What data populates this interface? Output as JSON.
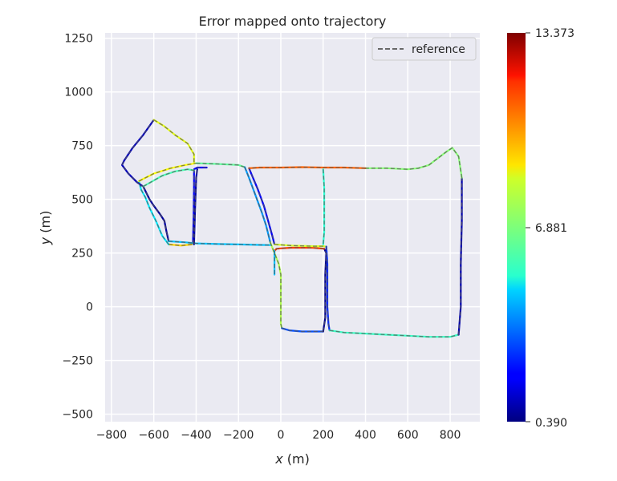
{
  "chart_data": {
    "type": "line",
    "title": "Error mapped onto trajectory",
    "xlabel_var": "x",
    "xlabel_unit": " (m)",
    "ylabel_var": "y",
    "ylabel_unit": " (m)",
    "xlim": [
      -830,
      940
    ],
    "ylim": [
      -535,
      1275
    ],
    "xticks": [
      -800,
      -600,
      -400,
      -200,
      0,
      200,
      400,
      600,
      800
    ],
    "xtick_labels": [
      "−800",
      "−600",
      "−400",
      "−200",
      "0",
      "200",
      "400",
      "600",
      "800"
    ],
    "yticks": [
      -500,
      -250,
      0,
      250,
      500,
      750,
      1000,
      1250
    ],
    "ytick_labels": [
      "−500",
      "−250",
      "0",
      "250",
      "500",
      "750",
      "1000",
      "1250"
    ],
    "grid": true,
    "legend": {
      "placement": "top-right",
      "entries": [
        "reference"
      ]
    },
    "colorbar": {
      "colormap": "jet",
      "min_label": "0.390",
      "mid_label": "6.881",
      "max_label": "13.373",
      "min": 0.39,
      "max": 13.373
    },
    "colors": {
      "plot_background": "#eaeaf2",
      "grid": "#ffffff",
      "reference_line": "#555555",
      "text": "#262626"
    },
    "series": [
      {
        "name": "reference",
        "style": "dashed",
        "segments": [
          {
            "error": 2.0,
            "points": [
              [
                -350,
                648
              ],
              [
                -395,
                648
              ],
              [
                -410,
                640
              ],
              [
                -410,
                560
              ],
              [
                -412,
                420
              ],
              [
                -415,
                300
              ],
              [
                -420,
                290
              ]
            ]
          },
          {
            "error": 9.0,
            "points": [
              [
                -420,
                290
              ],
              [
                -470,
                285
              ],
              [
                -530,
                290
              ]
            ]
          },
          {
            "error": 5.0,
            "points": [
              [
                -530,
                290
              ],
              [
                -560,
                330
              ],
              [
                -590,
                400
              ],
              [
                -620,
                460
              ],
              [
                -640,
                510
              ],
              [
                -660,
                545
              ],
              [
                -670,
                585
              ]
            ]
          },
          {
            "error": 8.5,
            "points": [
              [
                -670,
                585
              ],
              [
                -600,
                620
              ],
              [
                -520,
                645
              ],
              [
                -450,
                660
              ],
              [
                -400,
                668
              ]
            ]
          },
          {
            "error": 6.5,
            "points": [
              [
                -400,
                668
              ],
              [
                -300,
                665
              ],
              [
                -200,
                660
              ],
              [
                -170,
                650
              ]
            ]
          },
          {
            "error": 4.0,
            "points": [
              [
                -170,
                650
              ],
              [
                -150,
                600
              ],
              [
                -120,
                520
              ],
              [
                -90,
                440
              ],
              [
                -70,
                380
              ],
              [
                -60,
                340
              ],
              [
                -50,
                300
              ]
            ]
          },
          {
            "error": 7.5,
            "points": [
              [
                -50,
                300
              ],
              [
                -30,
                250
              ],
              [
                -10,
                200
              ],
              [
                0,
                150
              ],
              [
                0,
                50
              ],
              [
                0,
                -80
              ],
              [
                5,
                -100
              ]
            ]
          },
          {
            "error": 3.0,
            "points": [
              [
                5,
                -100
              ],
              [
                40,
                -110
              ],
              [
                100,
                -115
              ],
              [
                160,
                -115
              ],
              [
                200,
                -115
              ]
            ]
          },
          {
            "error": 0.6,
            "points": [
              [
                200,
                -115
              ],
              [
                210,
                -50
              ],
              [
                210,
                50
              ],
              [
                210,
                150
              ],
              [
                215,
                250
              ],
              [
                205,
                270
              ]
            ]
          },
          {
            "error": 11.0,
            "points": [
              [
                205,
                270
              ],
              [
                150,
                275
              ],
              [
                100,
                275
              ],
              [
                50,
                275
              ],
              [
                0,
                272
              ],
              [
                -20,
                270
              ],
              [
                -30,
                260
              ]
            ]
          },
          {
            "error": 4.5,
            "points": [
              [
                -30,
                260
              ],
              [
                -30,
                150
              ]
            ]
          },
          {
            "error": 2.0,
            "points": [
              [
                -150,
                645
              ],
              [
                -140,
                620
              ],
              [
                -110,
                550
              ],
              [
                -80,
                470
              ],
              [
                -60,
                400
              ],
              [
                -40,
                330
              ],
              [
                -30,
                290
              ]
            ]
          },
          {
            "error": 8.0,
            "points": [
              [
                -30,
                290
              ],
              [
                50,
                285
              ],
              [
                150,
                282
              ],
              [
                200,
                282
              ],
              [
                215,
                280
              ]
            ]
          },
          {
            "error": 2.5,
            "points": [
              [
                215,
                280
              ],
              [
                220,
                200
              ],
              [
                220,
                100
              ],
              [
                220,
                0
              ],
              [
                225,
                -80
              ],
              [
                230,
                -110
              ]
            ]
          },
          {
            "error": 6.0,
            "points": [
              [
                230,
                -110
              ],
              [
                300,
                -120
              ],
              [
                400,
                -125
              ],
              [
                500,
                -130
              ],
              [
                600,
                -135
              ],
              [
                700,
                -140
              ],
              [
                800,
                -140
              ],
              [
                840,
                -130
              ]
            ]
          },
          {
            "error": 1.0,
            "points": [
              [
                840,
                -130
              ],
              [
                850,
                0
              ],
              [
                850,
                200
              ],
              [
                855,
                400
              ],
              [
                855,
                600
              ]
            ]
          },
          {
            "error": 7.0,
            "points": [
              [
                855,
                600
              ],
              [
                840,
                700
              ],
              [
                810,
                740
              ],
              [
                780,
                720
              ],
              [
                740,
                690
              ],
              [
                700,
                660
              ],
              [
                650,
                645
              ],
              [
                600,
                640
              ],
              [
                500,
                645
              ],
              [
                400,
                645
              ]
            ]
          },
          {
            "error": 10.5,
            "points": [
              [
                400,
                645
              ],
              [
                300,
                648
              ],
              [
                200,
                648
              ],
              [
                100,
                650
              ],
              [
                0,
                648
              ],
              [
                -100,
                648
              ],
              [
                -150,
                645
              ]
            ]
          },
          {
            "error": 0.8,
            "points": [
              [
                -650,
                560
              ],
              [
                -620,
                500
              ],
              [
                -600,
                470
              ],
              [
                -570,
                430
              ],
              [
                -550,
                400
              ],
              [
                -540,
                350
              ],
              [
                -530,
                305
              ]
            ]
          },
          {
            "error": 4.5,
            "points": [
              [
                -530,
                305
              ],
              [
                -450,
                300
              ],
              [
                -400,
                295
              ],
              [
                -300,
                292
              ],
              [
                -200,
                290
              ],
              [
                -100,
                288
              ],
              [
                -50,
                287
              ]
            ]
          },
          {
            "error": 0.9,
            "points": [
              [
                -410,
                290
              ],
              [
                -405,
                450
              ],
              [
                -400,
                600
              ],
              [
                -395,
                640
              ]
            ]
          },
          {
            "error": 1.2,
            "points": [
              [
                -600,
                870
              ],
              [
                -650,
                800
              ],
              [
                -700,
                740
              ],
              [
                -740,
                680
              ],
              [
                -750,
                660
              ],
              [
                -720,
                620
              ],
              [
                -680,
                580
              ],
              [
                -650,
                560
              ]
            ]
          },
          {
            "error": 8.2,
            "points": [
              [
                -600,
                870
              ],
              [
                -550,
                840
              ],
              [
                -500,
                800
              ],
              [
                -440,
                760
              ],
              [
                -410,
                710
              ],
              [
                -410,
                670
              ]
            ]
          },
          {
            "error": 6.2,
            "points": [
              [
                -650,
                560
              ],
              [
                -560,
                610
              ],
              [
                -500,
                630
              ],
              [
                -440,
                640
              ],
              [
                -410,
                635
              ]
            ]
          },
          {
            "error": 5.8,
            "points": [
              [
                200,
                640
              ],
              [
                205,
                550
              ],
              [
                205,
                450
              ],
              [
                205,
                350
              ],
              [
                200,
                290
              ]
            ]
          }
        ]
      }
    ]
  }
}
